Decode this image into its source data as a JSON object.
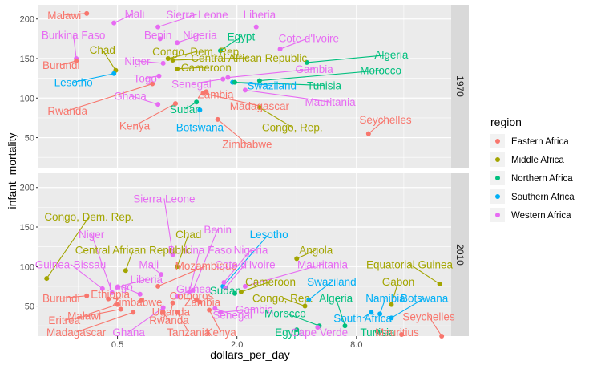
{
  "chart_data": {
    "type": "scatter",
    "xlabel": "dollars_per_day",
    "ylabel": "infant_mortality",
    "x_scale": "log2",
    "xlim": [
      0.2,
      24
    ],
    "ylim": [
      12,
      218
    ],
    "x_ticks": [
      {
        "value": 0.5,
        "label": "0.5"
      },
      {
        "value": 2,
        "label": "2.0"
      },
      {
        "value": 8,
        "label": "8.0"
      }
    ],
    "y_ticks": [
      50,
      100,
      150,
      200
    ],
    "legend": {
      "title": "region",
      "position": "right",
      "entries": [
        "Eastern Africa",
        "Middle Africa",
        "Northern Africa",
        "Southern Africa",
        "Western Africa"
      ]
    },
    "colors": {
      "Eastern Africa": "#F8766D",
      "Middle Africa": "#A3A500",
      "Northern Africa": "#00BF7D",
      "Southern Africa": "#00B0F6",
      "Western Africa": "#E76BF3"
    },
    "facets": [
      {
        "year": "1970",
        "points": [
          {
            "country": "Malawi",
            "region": "Eastern Africa",
            "x": 0.35,
            "y": 207,
            "lx": 0.27,
            "ly": 201
          },
          {
            "country": "Mali",
            "region": "Western Africa",
            "x": 0.48,
            "y": 195,
            "lx": 0.61,
            "ly": 203
          },
          {
            "country": "Sierra Leone",
            "region": "Western Africa",
            "x": 0.8,
            "y": 190,
            "lx": 1.26,
            "ly": 202
          },
          {
            "country": "Liberia",
            "region": "Western Africa",
            "x": 2.5,
            "y": 190,
            "lx": 2.6,
            "ly": 202
          },
          {
            "country": "Burkina Faso",
            "region": "Western Africa",
            "x": 0.31,
            "y": 150,
            "lx": 0.3,
            "ly": 176
          },
          {
            "country": "Benin",
            "region": "Western Africa",
            "x": 0.82,
            "y": 175,
            "lx": 0.8,
            "ly": 176
          },
          {
            "country": "Nigeria",
            "region": "Western Africa",
            "x": 1.0,
            "y": 170,
            "lx": 1.3,
            "ly": 176
          },
          {
            "country": "Egypt",
            "region": "Northern Africa",
            "x": 1.65,
            "y": 160,
            "lx": 2.1,
            "ly": 174
          },
          {
            "country": "Cote d'Ivoire",
            "region": "Western Africa",
            "x": 3.3,
            "y": 162,
            "lx": 4.6,
            "ly": 172
          },
          {
            "country": "Chad",
            "region": "Middle Africa",
            "x": 0.49,
            "y": 135,
            "lx": 0.42,
            "ly": 157
          },
          {
            "country": "Congo, Dem. Rep.",
            "region": "Middle Africa",
            "x": 0.9,
            "y": 150,
            "lx": 1.26,
            "ly": 155
          },
          {
            "country": "Central African Republic",
            "region": "Middle Africa",
            "x": 0.95,
            "y": 148,
            "lx": 2.3,
            "ly": 147
          },
          {
            "country": "Algeria",
            "region": "Northern Africa",
            "x": 4.5,
            "y": 145,
            "lx": 12,
            "ly": 151
          },
          {
            "country": "Burundi",
            "region": "Eastern Africa",
            "x": 0.31,
            "y": 147,
            "lx": 0.26,
            "ly": 138
          },
          {
            "country": "Niger",
            "region": "Western Africa",
            "x": 0.85,
            "y": 144,
            "lx": 0.63,
            "ly": 143
          },
          {
            "country": "Cameroon",
            "region": "Middle Africa",
            "x": 1.0,
            "y": 137,
            "lx": 1.4,
            "ly": 135
          },
          {
            "country": "Gambia",
            "region": "Western Africa",
            "x": 1.8,
            "y": 126,
            "lx": 4.9,
            "ly": 133
          },
          {
            "country": "Morocco",
            "region": "Northern Africa",
            "x": 2.6,
            "y": 122,
            "lx": 10.6,
            "ly": 131
          },
          {
            "country": "Lesotho",
            "region": "Southern Africa",
            "x": 0.48,
            "y": 131,
            "lx": 0.3,
            "ly": 116
          },
          {
            "country": "Togo",
            "region": "Western Africa",
            "x": 0.81,
            "y": 128,
            "lx": 0.69,
            "ly": 121
          },
          {
            "country": "Senegal",
            "region": "Western Africa",
            "x": 1.7,
            "y": 124,
            "lx": 1.18,
            "ly": 114
          },
          {
            "country": "Swaziland",
            "region": "Southern Africa",
            "x": 1.9,
            "y": 120,
            "lx": 3.0,
            "ly": 112
          },
          {
            "country": "Tunisia",
            "region": "Northern Africa",
            "x": 1.95,
            "y": 120,
            "lx": 5.5,
            "ly": 112
          },
          {
            "country": "Zambia",
            "region": "Eastern Africa",
            "x": 1.4,
            "y": 108,
            "lx": 1.56,
            "ly": 101
          },
          {
            "country": "Ghana",
            "region": "Western Africa",
            "x": 0.8,
            "y": 92,
            "lx": 0.58,
            "ly": 99
          },
          {
            "country": "Madagascar",
            "region": "Eastern Africa",
            "x": 1.35,
            "y": 106,
            "lx": 2.6,
            "ly": 86
          },
          {
            "country": "Mauritania",
            "region": "Western Africa",
            "x": 2.2,
            "y": 110,
            "lx": 5.9,
            "ly": 91
          },
          {
            "country": "Rwanda",
            "region": "Eastern Africa",
            "x": 0.75,
            "y": 118,
            "lx": 0.28,
            "ly": 80
          },
          {
            "country": "Sudan",
            "region": "Northern Africa",
            "x": 1.25,
            "y": 95,
            "lx": 1.1,
            "ly": 82
          },
          {
            "country": "Congo, Rep.",
            "region": "Middle Africa",
            "x": 2.6,
            "y": 88,
            "lx": 3.8,
            "ly": 59
          },
          {
            "country": "Seychelles",
            "region": "Eastern Africa",
            "x": 9.2,
            "y": 55,
            "lx": 11.2,
            "ly": 69
          },
          {
            "country": "Kenya",
            "region": "Eastern Africa",
            "x": 0.98,
            "y": 93,
            "lx": 0.61,
            "ly": 61
          },
          {
            "country": "Botswana",
            "region": "Southern Africa",
            "x": 1.3,
            "y": 85,
            "lx": 1.3,
            "ly": 59
          },
          {
            "country": "Zimbabwe",
            "region": "Eastern Africa",
            "x": 1.6,
            "y": 73,
            "lx": 2.25,
            "ly": 38
          }
        ]
      },
      {
        "year": "2010",
        "points": [
          {
            "country": "Sierra Leone",
            "region": "Western Africa",
            "x": 0.95,
            "y": 115,
            "lx": 0.86,
            "ly": 182
          },
          {
            "country": "Congo, Dem. Rep.",
            "region": "Middle Africa",
            "x": 0.22,
            "y": 85,
            "lx": 0.36,
            "ly": 159
          },
          {
            "country": "Chad",
            "region": "Middle Africa",
            "x": 1.0,
            "y": 100,
            "lx": 1.14,
            "ly": 137
          },
          {
            "country": "Benin",
            "region": "Western Africa",
            "x": 1.2,
            "y": 70,
            "lx": 1.6,
            "ly": 143
          },
          {
            "country": "Lesotho",
            "region": "Southern Africa",
            "x": 1.7,
            "y": 75,
            "lx": 2.9,
            "ly": 137
          },
          {
            "country": "Niger",
            "region": "Western Africa",
            "x": 0.47,
            "y": 67,
            "lx": 0.37,
            "ly": 137
          },
          {
            "country": "Burkina Faso",
            "region": "Western Africa",
            "x": 1.15,
            "y": 68,
            "lx": 1.3,
            "ly": 117
          },
          {
            "country": "Nigeria",
            "region": "Western Africa",
            "x": 1.72,
            "y": 80,
            "lx": 2.35,
            "ly": 117
          },
          {
            "country": "Angola",
            "region": "Middle Africa",
            "x": 4.0,
            "y": 110,
            "lx": 5.0,
            "ly": 117
          },
          {
            "country": "Central African Republic",
            "region": "Middle Africa",
            "x": 0.55,
            "y": 95,
            "lx": 0.6,
            "ly": 117
          },
          {
            "country": "Guinea-Bissau",
            "region": "Western Africa",
            "x": 0.42,
            "y": 72,
            "lx": 0.29,
            "ly": 99
          },
          {
            "country": "Mali",
            "region": "Western Africa",
            "x": 0.83,
            "y": 90,
            "lx": 0.72,
            "ly": 99
          },
          {
            "country": "Mozambique",
            "region": "Eastern Africa",
            "x": 0.8,
            "y": 75,
            "lx": 1.4,
            "ly": 97
          },
          {
            "country": "Cote d'Ivoire",
            "region": "Western Africa",
            "x": 1.75,
            "y": 73,
            "lx": 2.2,
            "ly": 99
          },
          {
            "country": "Mauritania",
            "region": "Western Africa",
            "x": 2.2,
            "y": 75,
            "lx": 5.4,
            "ly": 99
          },
          {
            "country": "Equatorial Guinea",
            "region": "Middle Africa",
            "x": 21,
            "y": 78,
            "lx": 14.8,
            "ly": 99
          },
          {
            "country": "Liberia",
            "region": "Western Africa",
            "x": 0.5,
            "y": 74,
            "lx": 0.7,
            "ly": 80
          },
          {
            "country": "Logo",
            "region": "Western Africa",
            "x": 0.65,
            "y": 65,
            "lx": 0.52,
            "ly": 71
          },
          {
            "country": "Guinea",
            "region": "Western Africa",
            "x": 1.0,
            "y": 62,
            "lx": 1.21,
            "ly": 68
          },
          {
            "country": "Sudan",
            "region": "Northern Africa",
            "x": 1.95,
            "y": 66,
            "lx": 1.75,
            "ly": 66
          },
          {
            "country": "Cameroon",
            "region": "Middle Africa",
            "x": 2.1,
            "y": 68,
            "lx": 2.95,
            "ly": 77
          },
          {
            "country": "Swaziland",
            "region": "Southern Africa",
            "x": 4.6,
            "y": 58,
            "lx": 6.0,
            "ly": 77
          },
          {
            "country": "Gabon",
            "region": "Middle Africa",
            "x": 12,
            "y": 52,
            "lx": 13,
            "ly": 77
          },
          {
            "country": "Burundi",
            "region": "Eastern Africa",
            "x": 0.35,
            "y": 63,
            "lx": 0.26,
            "ly": 56
          },
          {
            "country": "Ethiopia",
            "region": "Eastern Africa",
            "x": 0.45,
            "y": 59,
            "lx": 0.46,
            "ly": 61
          },
          {
            "country": "Zimbabwe",
            "region": "Eastern Africa",
            "x": 0.66,
            "y": 57,
            "lx": 0.63,
            "ly": 51
          },
          {
            "country": "Comoros",
            "region": "Eastern Africa",
            "x": 1.25,
            "y": 58,
            "lx": 1.18,
            "ly": 59
          },
          {
            "country": "Zambia",
            "region": "Eastern Africa",
            "x": 1.3,
            "y": 55,
            "lx": 1.34,
            "ly": 51
          },
          {
            "country": "Uganda",
            "region": "Eastern Africa",
            "x": 0.95,
            "y": 54,
            "lx": 0.93,
            "ly": 39
          },
          {
            "country": "Malawi",
            "region": "Eastern Africa",
            "x": 0.5,
            "y": 52,
            "lx": 0.34,
            "ly": 34
          },
          {
            "country": "Eritrea",
            "region": "Eastern Africa",
            "x": 0.52,
            "y": 46,
            "lx": 0.27,
            "ly": 28
          },
          {
            "country": "Rwanda",
            "region": "Eastern Africa",
            "x": 0.85,
            "y": 42,
            "lx": 0.91,
            "ly": 28
          },
          {
            "country": "Gambia",
            "region": "Western Africa",
            "x": 1.65,
            "y": 42,
            "lx": 2.45,
            "ly": 42
          },
          {
            "country": "Senegal",
            "region": "Western Africa",
            "x": 1.55,
            "y": 47,
            "lx": 1.9,
            "ly": 35
          },
          {
            "country": "Namibia",
            "region": "Southern Africa",
            "x": 10.5,
            "y": 40,
            "lx": 11.2,
            "ly": 56
          },
          {
            "country": "Botswana",
            "region": "Southern Africa",
            "x": 12,
            "y": 35,
            "lx": 17.6,
            "ly": 56
          },
          {
            "country": "Congo, Rep.",
            "region": "Middle Africa",
            "x": 4.4,
            "y": 50,
            "lx": 3.4,
            "ly": 56
          },
          {
            "country": "Algeria",
            "region": "Northern Africa",
            "x": 7.0,
            "y": 25,
            "lx": 6.3,
            "ly": 56
          },
          {
            "country": "Morocco",
            "region": "Northern Africa",
            "x": 5.2,
            "y": 25,
            "lx": 3.5,
            "ly": 37
          },
          {
            "country": "South Africa",
            "region": "Southern Africa",
            "x": 9.5,
            "y": 42,
            "lx": 8.6,
            "ly": 31
          },
          {
            "country": "Seychelles",
            "region": "Eastern Africa",
            "x": 21.5,
            "y": 12,
            "lx": 18.5,
            "ly": 33
          },
          {
            "country": "Madagascar",
            "region": "Eastern Africa",
            "x": 0.6,
            "y": 42,
            "lx": 0.31,
            "ly": 13
          },
          {
            "country": "Ghana",
            "region": "Western Africa",
            "x": 0.85,
            "y": 48,
            "lx": 0.57,
            "ly": 13
          },
          {
            "country": "Tanzania",
            "region": "Eastern Africa",
            "x": 1.0,
            "y": 42,
            "lx": 1.14,
            "ly": 13
          },
          {
            "country": "Kenya",
            "region": "Eastern Africa",
            "x": 1.45,
            "y": 45,
            "lx": 1.66,
            "ly": 13
          },
          {
            "country": "Egypt",
            "region": "Northern Africa",
            "x": 4.0,
            "y": 20,
            "lx": 3.65,
            "ly": 13
          },
          {
            "country": "Cape Verde",
            "region": "Western Africa",
            "x": 5.1,
            "y": 23,
            "lx": 5.2,
            "ly": 13
          },
          {
            "country": "Tunisia",
            "region": "Northern Africa",
            "x": 10.2,
            "y": 18,
            "lx": 10.2,
            "ly": 13
          },
          {
            "country": "Mauritius",
            "region": "Eastern Africa",
            "x": 13.5,
            "y": 14,
            "lx": 12.8,
            "ly": 13
          }
        ]
      }
    ]
  }
}
